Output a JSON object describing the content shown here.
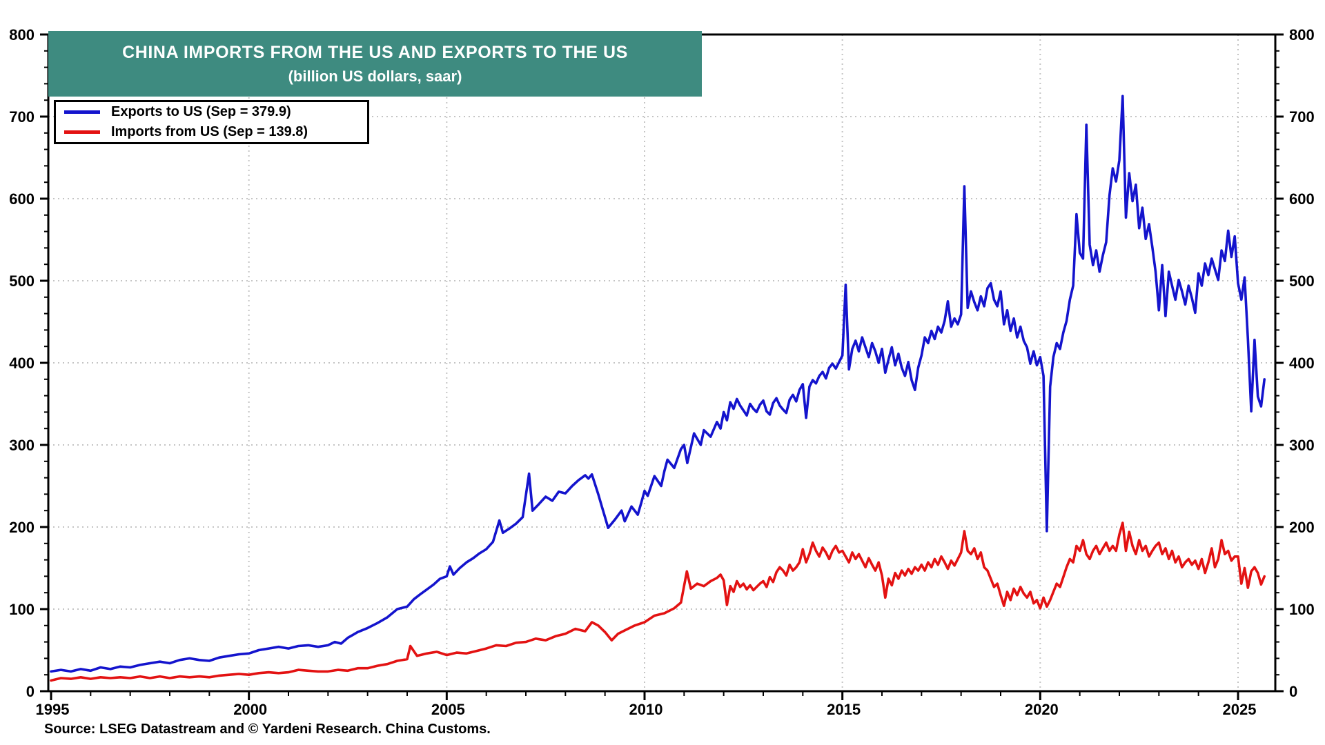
{
  "header": {
    "title": "CHINA IMPORTS FROM THE US AND EXPORTS TO THE US",
    "subtitle": "(billion US dollars, saar)"
  },
  "legend": [
    {
      "label": "Exports to US (Sep = 379.9)",
      "color": "#1414cd"
    },
    {
      "label": "Imports from US (Sep = 139.8)",
      "color": "#e31212"
    }
  ],
  "source": "Source: LSEG Datastream and © Yardeni Research. China Customs.",
  "colors": {
    "title_box_background": "#3e8b80",
    "title_text": "#ffffff",
    "exports_line": "#1414cd",
    "imports_line": "#e31212",
    "grid": "#c4c4c4",
    "axis": "#000000"
  },
  "chart_data": {
    "type": "line",
    "title": "CHINA IMPORTS FROM THE US AND EXPORTS TO THE US",
    "subtitle": "(billion US dollars, saar)",
    "xlabel": "",
    "ylabel": "",
    "xlim": [
      1995,
      2026
    ],
    "ylim": [
      0,
      800
    ],
    "x_ticks_major": [
      1995,
      2000,
      2005,
      2010,
      2015,
      2020,
      2025
    ],
    "x_minor_step": 1,
    "y_ticks_major": [
      0,
      100,
      200,
      300,
      400,
      500,
      600,
      700,
      800
    ],
    "y_minor_step": 20,
    "y_axis_sides": [
      "left",
      "right"
    ],
    "grid": "dotted at major ticks",
    "legend_position": "top-left",
    "series": [
      {
        "name": "Exports to US",
        "legend_label": "Exports to US (Sep = 379.9)",
        "latest": {
          "month": "Sep",
          "value": 379.9
        },
        "color": "#1414cd",
        "points_pairs": [
          [
            1995,
            24
          ],
          [
            1995.25,
            26
          ],
          [
            1995.5,
            24
          ],
          [
            1995.75,
            27
          ],
          [
            1996,
            25
          ],
          [
            1996.25,
            29
          ],
          [
            1996.5,
            27
          ],
          [
            1996.75,
            30
          ],
          [
            1997,
            29
          ],
          [
            1997.25,
            32
          ],
          [
            1997.5,
            34
          ],
          [
            1997.75,
            36
          ],
          [
            1998,
            34
          ],
          [
            1998.25,
            38
          ],
          [
            1998.5,
            40
          ],
          [
            1998.75,
            38
          ],
          [
            1999,
            37
          ],
          [
            1999.25,
            41
          ],
          [
            1999.5,
            43
          ],
          [
            1999.75,
            45
          ],
          [
            2000,
            46
          ],
          [
            2000.25,
            50
          ],
          [
            2000.5,
            52
          ],
          [
            2000.75,
            54
          ],
          [
            2001,
            52
          ],
          [
            2001.25,
            55
          ],
          [
            2001.5,
            56
          ],
          [
            2001.75,
            54
          ],
          [
            2002,
            56
          ],
          [
            2002.17,
            60
          ],
          [
            2002.33,
            58
          ],
          [
            2002.5,
            65
          ],
          [
            2002.75,
            72
          ],
          [
            2003,
            77
          ],
          [
            2003.25,
            83
          ],
          [
            2003.5,
            90
          ],
          [
            2003.75,
            100
          ],
          [
            2004,
            103
          ],
          [
            2004.17,
            112
          ],
          [
            2004.33,
            118
          ],
          [
            2004.5,
            124
          ],
          [
            2004.67,
            130
          ],
          [
            2004.83,
            137
          ],
          [
            2005,
            140
          ],
          [
            2005.08,
            152
          ],
          [
            2005.17,
            142
          ],
          [
            2005.33,
            150
          ],
          [
            2005.5,
            157
          ],
          [
            2005.67,
            162
          ],
          [
            2005.83,
            168
          ],
          [
            2006,
            173
          ],
          [
            2006.17,
            182
          ],
          [
            2006.33,
            208
          ],
          [
            2006.42,
            193
          ],
          [
            2006.58,
            198
          ],
          [
            2006.75,
            204
          ],
          [
            2006.92,
            212
          ],
          [
            2007.08,
            265
          ],
          [
            2007.17,
            220
          ],
          [
            2007.33,
            228
          ],
          [
            2007.5,
            237
          ],
          [
            2007.67,
            232
          ],
          [
            2007.83,
            243
          ],
          [
            2008,
            241
          ],
          [
            2008.17,
            250
          ],
          [
            2008.33,
            257
          ],
          [
            2008.5,
            263
          ],
          [
            2008.58,
            259
          ],
          [
            2008.67,
            264
          ],
          [
            2008.83,
            240
          ],
          [
            2008.92,
            225
          ],
          [
            2009,
            212
          ],
          [
            2009.08,
            199
          ],
          [
            2009.25,
            209
          ],
          [
            2009.42,
            220
          ],
          [
            2009.5,
            207
          ],
          [
            2009.67,
            225
          ],
          [
            2009.83,
            215
          ],
          [
            2009.92,
            230
          ],
          [
            2010,
            244
          ],
          [
            2010.08,
            238
          ],
          [
            2010.25,
            262
          ],
          [
            2010.42,
            250
          ],
          [
            2010.5,
            268
          ],
          [
            2010.58,
            282
          ],
          [
            2010.75,
            272
          ],
          [
            2010.92,
            295
          ],
          [
            2011,
            300
          ],
          [
            2011.08,
            278
          ],
          [
            2011.25,
            314
          ],
          [
            2011.42,
            300
          ],
          [
            2011.5,
            318
          ],
          [
            2011.67,
            310
          ],
          [
            2011.83,
            328
          ],
          [
            2011.92,
            320
          ]
        ],
        "monthly_start": 2012,
        "monthly_values": [
          340,
          330,
          352,
          344,
          356,
          348,
          342,
          336,
          350,
          344,
          340,
          349,
          354,
          341,
          337,
          351,
          357,
          348,
          343,
          339,
          355,
          361,
          353,
          367,
          374,
          333,
          371,
          379,
          375,
          384,
          389,
          381,
          394,
          399,
          393,
          401,
          409,
          495,
          392,
          417,
          427,
          414,
          431,
          419,
          407,
          424,
          414,
          400,
          417,
          388,
          404,
          419,
          397,
          411,
          394,
          384,
          401,
          379,
          367,
          394,
          409,
          431,
          424,
          439,
          429,
          444,
          437,
          451,
          475,
          444,
          454,
          447,
          459,
          615,
          467,
          487,
          474,
          464,
          481,
          469,
          491,
          497,
          477,
          469,
          487,
          447,
          464,
          439,
          454,
          431,
          444,
          427,
          419,
          399,
          414,
          397,
          407,
          384,
          195,
          371,
          407,
          424,
          417,
          437,
          451,
          477,
          494,
          581,
          534,
          527,
          690,
          544,
          519,
          537,
          511,
          531,
          547,
          604,
          637,
          621,
          647,
          725,
          577,
          631,
          597,
          617,
          564,
          589,
          551,
          569,
          541,
          511,
          464,
          519,
          457,
          511,
          494,
          477,
          501,
          487,
          471,
          494,
          479,
          461,
          509,
          494,
          521,
          507,
          527,
          514,
          501,
          537,
          524,
          561,
          529,
          554,
          497,
          477,
          504,
          429,
          341,
          428,
          359,
          347,
          379.9
        ]
      },
      {
        "name": "Imports from US",
        "legend_label": "Imports from US (Sep = 139.8)",
        "latest": {
          "month": "Sep",
          "value": 139.8
        },
        "color": "#e31212",
        "points_pairs": [
          [
            1995,
            13
          ],
          [
            1995.25,
            16
          ],
          [
            1995.5,
            15
          ],
          [
            1995.75,
            17
          ],
          [
            1996,
            15
          ],
          [
            1996.25,
            17
          ],
          [
            1996.5,
            16
          ],
          [
            1996.75,
            17
          ],
          [
            1997,
            16
          ],
          [
            1997.25,
            18
          ],
          [
            1997.5,
            16
          ],
          [
            1997.75,
            18
          ],
          [
            1998,
            16
          ],
          [
            1998.25,
            18
          ],
          [
            1998.5,
            17
          ],
          [
            1998.75,
            18
          ],
          [
            1999,
            17
          ],
          [
            1999.25,
            19
          ],
          [
            1999.5,
            20
          ],
          [
            1999.75,
            21
          ],
          [
            2000,
            20
          ],
          [
            2000.25,
            22
          ],
          [
            2000.5,
            23
          ],
          [
            2000.75,
            22
          ],
          [
            2001,
            23
          ],
          [
            2001.25,
            26
          ],
          [
            2001.5,
            25
          ],
          [
            2001.75,
            24
          ],
          [
            2002,
            24
          ],
          [
            2002.25,
            26
          ],
          [
            2002.5,
            25
          ],
          [
            2002.75,
            28
          ],
          [
            2003,
            28
          ],
          [
            2003.25,
            31
          ],
          [
            2003.5,
            33
          ],
          [
            2003.75,
            37
          ],
          [
            2004,
            39
          ],
          [
            2004.08,
            55
          ],
          [
            2004.25,
            43
          ],
          [
            2004.5,
            46
          ],
          [
            2004.75,
            48
          ],
          [
            2005,
            44
          ],
          [
            2005.25,
            47
          ],
          [
            2005.5,
            46
          ],
          [
            2005.75,
            49
          ],
          [
            2006,
            52
          ],
          [
            2006.25,
            56
          ],
          [
            2006.5,
            55
          ],
          [
            2006.75,
            59
          ],
          [
            2007,
            60
          ],
          [
            2007.25,
            64
          ],
          [
            2007.5,
            62
          ],
          [
            2007.75,
            67
          ],
          [
            2008,
            70
          ],
          [
            2008.25,
            76
          ],
          [
            2008.5,
            73
          ],
          [
            2008.67,
            84
          ],
          [
            2008.83,
            80
          ],
          [
            2009,
            72
          ],
          [
            2009.17,
            62
          ],
          [
            2009.33,
            70
          ],
          [
            2009.5,
            74
          ],
          [
            2009.75,
            80
          ],
          [
            2010,
            84
          ],
          [
            2010.25,
            92
          ],
          [
            2010.5,
            95
          ],
          [
            2010.75,
            101
          ],
          [
            2010.92,
            108
          ],
          [
            2011.07,
            146
          ],
          [
            2011.17,
            125
          ],
          [
            2011.33,
            131
          ],
          [
            2011.5,
            128
          ],
          [
            2011.67,
            134
          ],
          [
            2011.83,
            138
          ],
          [
            2011.92,
            142
          ]
        ],
        "monthly_start": 2012,
        "monthly_values": [
          135,
          105,
          128,
          121,
          134,
          127,
          131,
          124,
          129,
          123,
          127,
          131,
          134,
          127,
          139,
          133,
          145,
          151,
          147,
          141,
          154,
          147,
          151,
          157,
          173,
          157,
          167,
          181,
          171,
          164,
          175,
          169,
          161,
          171,
          177,
          169,
          171,
          164,
          157,
          169,
          161,
          167,
          159,
          151,
          162,
          154,
          147,
          157,
          141,
          114,
          137,
          129,
          144,
          137,
          147,
          141,
          149,
          143,
          151,
          147,
          154,
          147,
          157,
          151,
          161,
          154,
          164,
          157,
          149,
          159,
          153,
          161,
          169,
          195,
          171,
          167,
          174,
          161,
          169,
          151,
          147,
          137,
          127,
          131,
          117,
          104,
          121,
          111,
          125,
          117,
          127,
          119,
          114,
          121,
          107,
          111,
          101,
          114,
          103,
          111,
          121,
          131,
          127,
          139,
          151,
          161,
          157,
          177,
          171,
          184,
          167,
          161,
          171,
          177,
          167,
          174,
          181,
          171,
          177,
          171,
          191,
          205,
          171,
          194,
          177,
          167,
          184,
          171,
          177,
          164,
          171,
          177,
          181,
          167,
          174,
          161,
          171,
          157,
          164,
          151,
          157,
          161,
          154,
          159,
          149,
          161,
          144,
          157,
          174,
          151,
          161,
          184,
          167,
          171,
          159,
          164,
          164,
          131,
          150,
          126,
          146,
          151,
          144,
          130,
          139.8
        ]
      }
    ]
  }
}
